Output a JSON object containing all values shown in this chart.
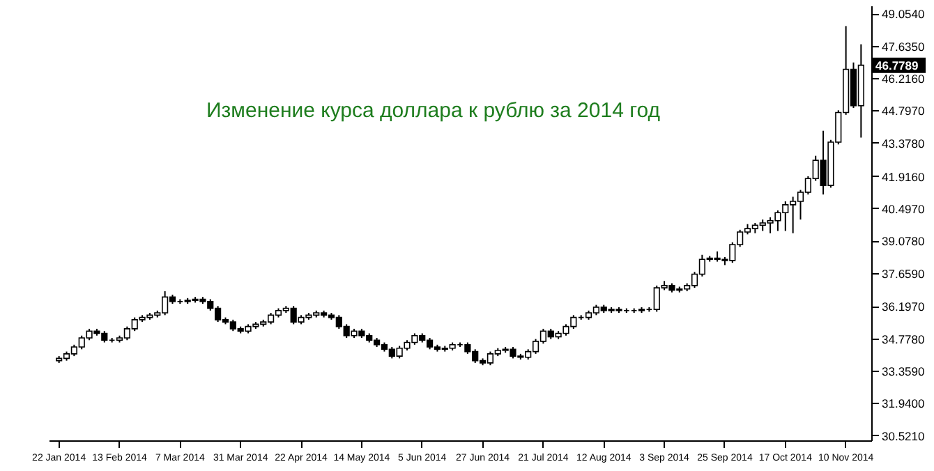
{
  "chart_data": {
    "type": "candlestick",
    "title": "Изменение курса доллара к рублю за 2014 год",
    "categories": [
      "22 Jan 2014",
      null,
      null,
      null,
      null,
      null,
      null,
      null,
      "13 Feb 2014",
      null,
      null,
      null,
      null,
      null,
      null,
      null,
      "7 Mar 2014",
      null,
      null,
      null,
      null,
      null,
      null,
      null,
      "31 Mar 2014",
      null,
      null,
      null,
      null,
      null,
      null,
      null,
      "22 Apr 2014",
      null,
      null,
      null,
      null,
      null,
      null,
      null,
      "14 May 2014",
      null,
      null,
      null,
      null,
      null,
      null,
      null,
      "5 Jun 2014",
      null,
      null,
      null,
      null,
      null,
      null,
      null,
      "27 Jun 2014",
      null,
      null,
      null,
      null,
      null,
      null,
      null,
      "21 Jul 2014",
      null,
      null,
      null,
      null,
      null,
      null,
      null,
      "12 Aug 2014",
      null,
      null,
      null,
      null,
      null,
      null,
      null,
      "3 Sep 2014",
      null,
      null,
      null,
      null,
      null,
      null,
      null,
      "25 Sep 2014",
      null,
      null,
      null,
      null,
      null,
      null,
      null,
      "17 Oct 2014",
      null,
      null,
      null,
      null,
      null,
      null,
      null,
      "10 Nov 2014",
      null,
      null
    ],
    "ohlc": [
      [
        33.8,
        34.0,
        33.7,
        33.9
      ],
      [
        33.9,
        34.2,
        33.8,
        34.1
      ],
      [
        34.1,
        34.5,
        34.0,
        34.4
      ],
      [
        34.4,
        34.9,
        34.3,
        34.8
      ],
      [
        34.8,
        35.2,
        34.7,
        35.1
      ],
      [
        35.1,
        35.2,
        34.9,
        35.0
      ],
      [
        35.0,
        35.1,
        34.6,
        34.7
      ],
      [
        34.7,
        34.8,
        34.6,
        34.7
      ],
      [
        34.7,
        34.9,
        34.6,
        34.8
      ],
      [
        34.8,
        35.3,
        34.7,
        35.2
      ],
      [
        35.2,
        35.7,
        35.1,
        35.6
      ],
      [
        35.6,
        35.8,
        35.5,
        35.7
      ],
      [
        35.7,
        35.9,
        35.6,
        35.8
      ],
      [
        35.8,
        36.0,
        35.7,
        35.9
      ],
      [
        35.9,
        36.85,
        35.8,
        36.6
      ],
      [
        36.6,
        36.7,
        36.3,
        36.4
      ],
      [
        36.4,
        36.5,
        36.3,
        36.4
      ],
      [
        36.4,
        36.55,
        36.3,
        36.45
      ],
      [
        36.45,
        36.6,
        36.35,
        36.5
      ],
      [
        36.5,
        36.6,
        36.3,
        36.4
      ],
      [
        36.4,
        36.5,
        36.0,
        36.1
      ],
      [
        36.1,
        36.2,
        35.5,
        35.6
      ],
      [
        35.6,
        35.7,
        35.4,
        35.5
      ],
      [
        35.5,
        35.6,
        35.1,
        35.2
      ],
      [
        35.2,
        35.3,
        35.0,
        35.1
      ],
      [
        35.1,
        35.4,
        35.0,
        35.3
      ],
      [
        35.3,
        35.5,
        35.2,
        35.4
      ],
      [
        35.4,
        35.6,
        35.3,
        35.5
      ],
      [
        35.5,
        35.9,
        35.4,
        35.8
      ],
      [
        35.8,
        36.1,
        35.7,
        36.0
      ],
      [
        36.0,
        36.2,
        35.9,
        36.1
      ],
      [
        36.1,
        36.2,
        35.4,
        35.5
      ],
      [
        35.5,
        35.8,
        35.4,
        35.7
      ],
      [
        35.7,
        35.9,
        35.6,
        35.8
      ],
      [
        35.8,
        36.0,
        35.7,
        35.9
      ],
      [
        35.9,
        36.0,
        35.7,
        35.8
      ],
      [
        35.8,
        35.9,
        35.6,
        35.7
      ],
      [
        35.7,
        35.8,
        35.2,
        35.3
      ],
      [
        35.3,
        35.4,
        34.8,
        34.9
      ],
      [
        34.9,
        35.2,
        34.8,
        35.1
      ],
      [
        35.1,
        35.2,
        34.8,
        34.9
      ],
      [
        34.9,
        35.0,
        34.6,
        34.7
      ],
      [
        34.7,
        34.8,
        34.4,
        34.5
      ],
      [
        34.5,
        34.6,
        34.2,
        34.3
      ],
      [
        34.3,
        34.4,
        33.9,
        34.0
      ],
      [
        34.0,
        34.45,
        33.9,
        34.35
      ],
      [
        34.35,
        34.7,
        34.25,
        34.6
      ],
      [
        34.6,
        35.0,
        34.5,
        34.9
      ],
      [
        34.9,
        35.0,
        34.6,
        34.7
      ],
      [
        34.7,
        34.8,
        34.3,
        34.4
      ],
      [
        34.4,
        34.5,
        34.2,
        34.3
      ],
      [
        34.3,
        34.45,
        34.2,
        34.35
      ],
      [
        34.35,
        34.6,
        34.25,
        34.5
      ],
      [
        34.5,
        34.6,
        34.4,
        34.5
      ],
      [
        34.5,
        34.6,
        34.1,
        34.2
      ],
      [
        34.2,
        34.3,
        33.7,
        33.8
      ],
      [
        33.8,
        33.9,
        33.6,
        33.7
      ],
      [
        33.7,
        34.2,
        33.6,
        34.1
      ],
      [
        34.1,
        34.35,
        34.0,
        34.25
      ],
      [
        34.25,
        34.4,
        34.15,
        34.3
      ],
      [
        34.3,
        34.4,
        33.9,
        34.0
      ],
      [
        34.0,
        34.1,
        33.85,
        33.95
      ],
      [
        33.95,
        34.3,
        33.85,
        34.2
      ],
      [
        34.2,
        34.75,
        34.1,
        34.65
      ],
      [
        34.65,
        35.2,
        34.55,
        35.1
      ],
      [
        35.1,
        35.2,
        34.75,
        34.85
      ],
      [
        34.85,
        35.1,
        34.75,
        35.0
      ],
      [
        35.0,
        35.4,
        34.9,
        35.3
      ],
      [
        35.3,
        35.8,
        35.2,
        35.7
      ],
      [
        35.7,
        35.8,
        35.6,
        35.7
      ],
      [
        35.7,
        36.0,
        35.6,
        35.9
      ],
      [
        35.9,
        36.25,
        35.8,
        36.15
      ],
      [
        36.15,
        36.25,
        35.9,
        36.0
      ],
      [
        36.0,
        36.15,
        35.9,
        36.05
      ],
      [
        36.05,
        36.15,
        35.9,
        36.0
      ],
      [
        36.0,
        36.1,
        35.9,
        36.0
      ],
      [
        36.0,
        36.1,
        35.9,
        36.0
      ],
      [
        36.0,
        36.15,
        35.9,
        36.05
      ],
      [
        36.05,
        36.15,
        35.95,
        36.05
      ],
      [
        36.05,
        37.1,
        35.95,
        37.0
      ],
      [
        37.0,
        37.3,
        36.9,
        37.1
      ],
      [
        37.1,
        37.2,
        36.8,
        36.9
      ],
      [
        36.9,
        37.05,
        36.8,
        36.95
      ],
      [
        36.95,
        37.2,
        36.85,
        37.1
      ],
      [
        37.1,
        37.7,
        37.0,
        37.6
      ],
      [
        37.6,
        38.45,
        37.5,
        38.25
      ],
      [
        38.25,
        38.4,
        38.15,
        38.3
      ],
      [
        38.3,
        38.6,
        38.15,
        38.25
      ],
      [
        38.25,
        38.35,
        38.0,
        38.2
      ],
      [
        38.2,
        39.0,
        38.1,
        38.9
      ],
      [
        38.9,
        39.55,
        38.8,
        39.45
      ],
      [
        39.45,
        39.8,
        39.35,
        39.6
      ],
      [
        39.6,
        39.85,
        39.4,
        39.75
      ],
      [
        39.75,
        40.0,
        39.5,
        39.85
      ],
      [
        39.85,
        40.1,
        39.4,
        39.95
      ],
      [
        39.95,
        40.4,
        39.5,
        40.3
      ],
      [
        40.3,
        40.8,
        39.5,
        40.65
      ],
      [
        40.65,
        41.0,
        39.4,
        40.8
      ],
      [
        40.8,
        41.3,
        40.0,
        41.2
      ],
      [
        41.2,
        41.9,
        41.1,
        41.8
      ],
      [
        41.8,
        42.8,
        41.7,
        42.6
      ],
      [
        42.6,
        43.9,
        41.1,
        41.5
      ],
      [
        41.5,
        43.5,
        41.4,
        43.4
      ],
      [
        43.4,
        44.8,
        43.3,
        44.7
      ],
      [
        44.7,
        48.5,
        44.6,
        46.6
      ],
      [
        46.6,
        46.9,
        44.9,
        45.0
      ],
      [
        45.0,
        47.7,
        43.6,
        46.7789
      ]
    ],
    "color": "#000000",
    "ylim": [
      30.3,
      49.4
    ],
    "yticks": [
      {
        "value": 30.521,
        "label": "30.5210"
      },
      {
        "value": 31.94,
        "label": "31.9400"
      },
      {
        "value": 33.359,
        "label": "33.3590"
      },
      {
        "value": 34.778,
        "label": "34.7780"
      },
      {
        "value": 36.197,
        "label": "36.1970"
      },
      {
        "value": 37.659,
        "label": "37.6590"
      },
      {
        "value": 39.078,
        "label": "39.0780"
      },
      {
        "value": 40.497,
        "label": "40.4970"
      },
      {
        "value": 41.916,
        "label": "41.9160"
      },
      {
        "value": 43.378,
        "label": "43.3780"
      },
      {
        "value": 44.797,
        "label": "44.7970"
      },
      {
        "value": 46.216,
        "label": "46.2160"
      },
      {
        "value": 47.635,
        "label": "47.6350"
      },
      {
        "value": 49.054,
        "label": "49.0540"
      }
    ],
    "annotations": [
      "46.7789"
    ]
  }
}
